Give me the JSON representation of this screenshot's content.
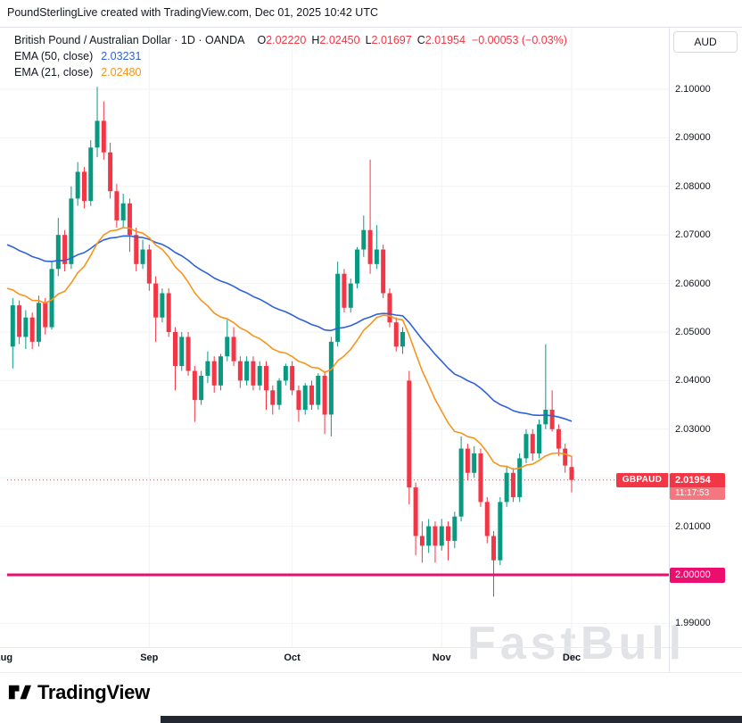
{
  "header": {
    "attribution": "PoundSterlingLive created with TradingView.com, Dec 01, 2025 10:42 UTC"
  },
  "legend": {
    "title_line": "British Pound / Australian Dollar · 1D · OANDA",
    "ohlc_items": [
      {
        "k": "O",
        "v": "2.02220"
      },
      {
        "k": "H",
        "v": "2.02450"
      },
      {
        "k": "L",
        "v": "2.01697"
      },
      {
        "k": "C",
        "v": "2.01954"
      }
    ],
    "change": "−0.00053 (−0.03%)"
  },
  "price_axis": {
    "currency": "AUD",
    "ticks": [
      "2.10000",
      "2.09000",
      "2.08000",
      "2.07000",
      "2.06000",
      "2.05000",
      "2.04000",
      "2.03000",
      "2.01000",
      "1.99000"
    ],
    "price_tag": {
      "symbol": "GBPAUD",
      "price": "2.01954",
      "countdown": "11:17:53"
    }
  },
  "watermark": "FastBull",
  "footer": {
    "logo_text": "TradingView"
  },
  "chart_data": {
    "type": "candlestick",
    "symbol": "GBPAUD",
    "interval": "1D",
    "exchange": "OANDA",
    "colors": {
      "up": "#089981",
      "down": "#f23645",
      "countdown": "#f4767f",
      "grid": "#f0f2f6"
    },
    "y_axis": {
      "tick_step": 0.01,
      "ylim": [
        1.979,
        2.113
      ]
    },
    "x_ticks": [
      {
        "label": "Aug",
        "index": -1.5
      },
      {
        "label": "Sep",
        "index": 21
      },
      {
        "label": "Oct",
        "index": 43
      },
      {
        "label": "Nov",
        "index": 66
      },
      {
        "label": "Dec",
        "index": 86
      }
    ],
    "overlays": [
      {
        "name": "EMA (50, close)",
        "length": 50,
        "seed": 2.068,
        "color": "#2f62d9",
        "value": "2.03231"
      },
      {
        "name": "EMA (21, close)",
        "length": 21,
        "seed": 2.059,
        "color": "#f7941e",
        "value": "2.02480"
      }
    ],
    "levels": [
      {
        "price": 2.0,
        "label": "2.00000",
        "color": "#ec0e6f",
        "width": 3
      }
    ],
    "last_price_line": {
      "price": 2.01954,
      "color": "#f23645",
      "style": "dotted"
    },
    "ohlc": [
      [
        2.047,
        2.057,
        2.0425,
        2.0555
      ],
      [
        2.0555,
        2.0565,
        2.0475,
        2.049
      ],
      [
        2.049,
        2.0545,
        2.0465,
        2.053
      ],
      [
        2.053,
        2.054,
        2.0465,
        2.048
      ],
      [
        2.048,
        2.0575,
        2.047,
        2.056
      ],
      [
        2.056,
        2.057,
        2.0495,
        2.051
      ],
      [
        2.051,
        2.0645,
        2.0505,
        2.063
      ],
      [
        2.063,
        2.0735,
        2.0615,
        2.07
      ],
      [
        2.07,
        2.071,
        2.0625,
        2.064
      ],
      [
        2.064,
        2.08,
        2.063,
        2.0775
      ],
      [
        2.0775,
        2.085,
        2.076,
        2.083
      ],
      [
        2.083,
        2.084,
        2.0755,
        2.077
      ],
      [
        2.077,
        2.0895,
        2.076,
        2.088
      ],
      [
        2.088,
        2.1005,
        2.086,
        2.0935
      ],
      [
        2.0935,
        2.0975,
        2.0855,
        2.087
      ],
      [
        2.087,
        2.089,
        2.0775,
        2.079
      ],
      [
        2.079,
        2.0805,
        2.0715,
        2.073
      ],
      [
        2.073,
        2.0785,
        2.0715,
        2.0765
      ],
      [
        2.0765,
        2.0775,
        2.0665,
        2.07
      ],
      [
        2.07,
        2.0715,
        2.0625,
        2.064
      ],
      [
        2.064,
        2.069,
        2.063,
        2.067
      ],
      [
        2.067,
        2.068,
        2.0585,
        2.06
      ],
      [
        2.06,
        2.0615,
        2.048,
        2.053
      ],
      [
        2.053,
        2.059,
        2.052,
        2.058
      ],
      [
        2.058,
        2.059,
        2.049,
        2.05
      ],
      [
        2.05,
        2.051,
        2.038,
        2.043
      ],
      [
        2.043,
        2.05,
        2.042,
        2.049
      ],
      [
        2.049,
        2.05,
        2.041,
        2.042
      ],
      [
        2.042,
        2.043,
        2.0315,
        2.036
      ],
      [
        2.036,
        2.042,
        2.035,
        2.041
      ],
      [
        2.041,
        2.046,
        2.0395,
        2.044
      ],
      [
        2.044,
        2.045,
        2.0375,
        2.039
      ],
      [
        2.039,
        2.0455,
        2.038,
        2.045
      ],
      [
        2.045,
        2.0525,
        2.044,
        2.049
      ],
      [
        2.049,
        2.051,
        2.043,
        2.044
      ],
      [
        2.044,
        2.045,
        2.0385,
        2.04
      ],
      [
        2.04,
        2.045,
        2.039,
        2.044
      ],
      [
        2.044,
        2.045,
        2.038,
        2.039
      ],
      [
        2.039,
        2.044,
        2.038,
        2.043
      ],
      [
        2.043,
        2.044,
        2.034,
        2.038
      ],
      [
        2.038,
        2.039,
        2.033,
        2.035
      ],
      [
        2.035,
        2.0405,
        2.034,
        2.04
      ],
      [
        2.04,
        2.0435,
        2.039,
        2.043
      ],
      [
        2.043,
        2.044,
        2.037,
        2.038
      ],
      [
        2.038,
        2.039,
        2.0315,
        2.034
      ],
      [
        2.034,
        2.0395,
        2.033,
        2.039
      ],
      [
        2.039,
        2.04,
        2.034,
        2.035
      ],
      [
        2.035,
        2.0415,
        2.034,
        2.041
      ],
      [
        2.041,
        2.042,
        2.029,
        2.033
      ],
      [
        2.033,
        2.049,
        2.0285,
        2.048
      ],
      [
        2.048,
        2.0645,
        2.047,
        2.062
      ],
      [
        2.062,
        2.063,
        2.054,
        2.055
      ],
      [
        2.055,
        2.061,
        2.054,
        2.06
      ],
      [
        2.06,
        2.0675,
        2.059,
        2.067
      ],
      [
        2.067,
        2.074,
        2.0655,
        2.071
      ],
      [
        2.071,
        2.0855,
        2.062,
        2.064
      ],
      [
        2.064,
        2.072,
        2.063,
        2.067
      ],
      [
        2.067,
        2.068,
        2.057,
        2.058
      ],
      [
        2.058,
        2.059,
        2.051,
        2.052
      ],
      [
        2.052,
        2.053,
        2.046,
        2.047
      ],
      [
        2.047,
        2.051,
        2.0455,
        2.05
      ],
      [
        2.04,
        2.042,
        2.0145,
        2.018
      ],
      [
        2.018,
        2.019,
        2.004,
        2.008
      ],
      [
        2.008,
        2.011,
        2.0025,
        2.006
      ],
      [
        2.006,
        2.0115,
        2.0045,
        2.01
      ],
      [
        2.01,
        2.011,
        2.0025,
        2.006
      ],
      [
        2.006,
        2.0115,
        2.005,
        2.01
      ],
      [
        2.01,
        2.011,
        2.003,
        2.007
      ],
      [
        2.007,
        2.013,
        2.0055,
        2.012
      ],
      [
        2.012,
        2.0285,
        2.011,
        2.026
      ],
      [
        2.026,
        2.027,
        2.0195,
        2.021
      ],
      [
        2.021,
        2.0265,
        2.02,
        2.025
      ],
      [
        2.025,
        2.026,
        2.014,
        2.015
      ],
      [
        2.015,
        2.016,
        2.0065,
        2.008
      ],
      [
        2.008,
        2.009,
        1.9955,
        2.003
      ],
      [
        2.003,
        2.016,
        2.002,
        2.015
      ],
      [
        2.015,
        2.0225,
        2.014,
        2.021
      ],
      [
        2.021,
        2.022,
        2.015,
        2.016
      ],
      [
        2.016,
        2.025,
        2.015,
        2.024
      ],
      [
        2.024,
        2.03,
        2.023,
        2.029
      ],
      [
        2.029,
        2.03,
        2.0235,
        2.025
      ],
      [
        2.025,
        2.032,
        2.024,
        2.031
      ],
      [
        2.031,
        2.0475,
        2.03,
        2.034
      ],
      [
        2.034,
        2.038,
        2.0295,
        2.03
      ],
      [
        2.03,
        2.031,
        2.0245,
        2.026
      ],
      [
        2.026,
        2.027,
        2.021,
        2.0225
      ],
      [
        2.0222,
        2.0245,
        2.01697,
        2.01954
      ]
    ]
  }
}
